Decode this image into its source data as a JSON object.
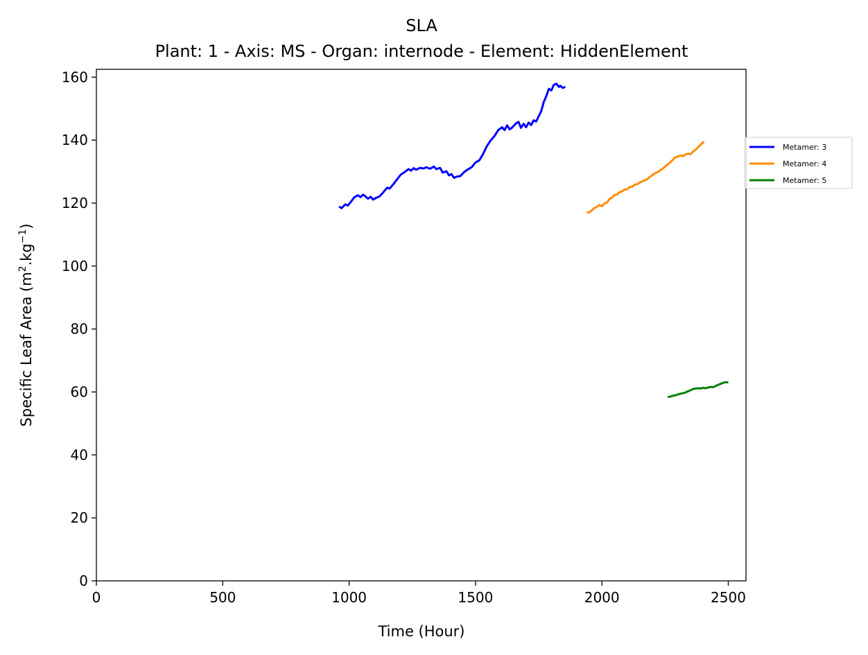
{
  "chart_data": {
    "type": "line",
    "title": "SLA",
    "subtitle": "Plant: 1 - Axis: MS - Organ: internode - Element: HiddenElement",
    "xlabel": "Time (Hour)",
    "ylabel_text": "Specific Leaf Area (m",
    "ylabel_sup1": "2",
    "ylabel_mid": ".kg",
    "ylabel_sup2": "−1",
    "ylabel_end": ")",
    "xlim": [
      0,
      2570
    ],
    "ylim": [
      0,
      162.5
    ],
    "xticks": [
      0,
      500,
      1000,
      1500,
      2000,
      2500
    ],
    "yticks": [
      0,
      20,
      40,
      60,
      80,
      100,
      120,
      140,
      160
    ],
    "grid": false,
    "legend_position": "right",
    "series": [
      {
        "name": "Metamer: 3",
        "color": "#0000ff",
        "points": [
          [
            960,
            118.9
          ],
          [
            970,
            118.4
          ],
          [
            985,
            119.6
          ],
          [
            995,
            119.2
          ],
          [
            1005,
            120.2
          ],
          [
            1020,
            121.8
          ],
          [
            1035,
            122.5
          ],
          [
            1045,
            121.9
          ],
          [
            1055,
            122.7
          ],
          [
            1065,
            122.1
          ],
          [
            1075,
            121.4
          ],
          [
            1085,
            122.0
          ],
          [
            1095,
            121.1
          ],
          [
            1105,
            121.6
          ],
          [
            1120,
            122.1
          ],
          [
            1135,
            123.4
          ],
          [
            1150,
            124.9
          ],
          [
            1160,
            124.6
          ],
          [
            1175,
            126.0
          ],
          [
            1190,
            127.6
          ],
          [
            1205,
            129.1
          ],
          [
            1220,
            129.9
          ],
          [
            1235,
            130.8
          ],
          [
            1245,
            130.3
          ],
          [
            1255,
            131.1
          ],
          [
            1265,
            130.6
          ],
          [
            1280,
            131.2
          ],
          [
            1295,
            131.0
          ],
          [
            1305,
            131.4
          ],
          [
            1320,
            130.9
          ],
          [
            1335,
            131.6
          ],
          [
            1345,
            130.8
          ],
          [
            1360,
            131.2
          ],
          [
            1370,
            129.7
          ],
          [
            1385,
            130.1
          ],
          [
            1395,
            128.8
          ],
          [
            1405,
            129.2
          ],
          [
            1415,
            128.0
          ],
          [
            1425,
            128.4
          ],
          [
            1440,
            128.6
          ],
          [
            1455,
            129.9
          ],
          [
            1470,
            130.7
          ],
          [
            1485,
            131.4
          ],
          [
            1500,
            132.9
          ],
          [
            1515,
            133.6
          ],
          [
            1530,
            135.6
          ],
          [
            1545,
            138.1
          ],
          [
            1560,
            139.9
          ],
          [
            1575,
            141.3
          ],
          [
            1590,
            143.2
          ],
          [
            1605,
            144.1
          ],
          [
            1615,
            143.2
          ],
          [
            1625,
            144.7
          ],
          [
            1635,
            143.4
          ],
          [
            1645,
            144.0
          ],
          [
            1660,
            145.3
          ],
          [
            1670,
            145.8
          ],
          [
            1680,
            143.9
          ],
          [
            1690,
            145.2
          ],
          [
            1700,
            144.1
          ],
          [
            1710,
            145.6
          ],
          [
            1720,
            144.8
          ],
          [
            1730,
            146.3
          ],
          [
            1740,
            145.9
          ],
          [
            1750,
            147.6
          ],
          [
            1760,
            149.2
          ],
          [
            1770,
            152.1
          ],
          [
            1780,
            154.0
          ],
          [
            1790,
            156.3
          ],
          [
            1800,
            155.8
          ],
          [
            1810,
            157.6
          ],
          [
            1820,
            157.9
          ],
          [
            1830,
            156.9
          ],
          [
            1835,
            157.3
          ],
          [
            1845,
            156.6
          ],
          [
            1855,
            156.9
          ]
        ]
      },
      {
        "name": "Metamer: 4",
        "color": "#ff8c00",
        "points": [
          [
            1940,
            117.0
          ],
          [
            1950,
            117.1
          ],
          [
            1960,
            117.7
          ],
          [
            1970,
            118.4
          ],
          [
            1980,
            118.8
          ],
          [
            1990,
            119.4
          ],
          [
            2000,
            119.0
          ],
          [
            2010,
            119.9
          ],
          [
            2020,
            120.2
          ],
          [
            2030,
            121.3
          ],
          [
            2040,
            121.7
          ],
          [
            2050,
            122.6
          ],
          [
            2060,
            122.7
          ],
          [
            2070,
            123.5
          ],
          [
            2080,
            123.7
          ],
          [
            2090,
            124.3
          ],
          [
            2100,
            124.4
          ],
          [
            2110,
            125.1
          ],
          [
            2120,
            125.2
          ],
          [
            2130,
            125.9
          ],
          [
            2140,
            126.0
          ],
          [
            2150,
            126.6
          ],
          [
            2160,
            126.9
          ],
          [
            2170,
            127.3
          ],
          [
            2180,
            127.6
          ],
          [
            2190,
            128.4
          ],
          [
            2200,
            128.9
          ],
          [
            2210,
            129.5
          ],
          [
            2220,
            129.8
          ],
          [
            2230,
            130.4
          ],
          [
            2240,
            130.9
          ],
          [
            2250,
            131.6
          ],
          [
            2260,
            132.3
          ],
          [
            2270,
            132.9
          ],
          [
            2280,
            133.7
          ],
          [
            2290,
            134.5
          ],
          [
            2300,
            134.8
          ],
          [
            2310,
            135.1
          ],
          [
            2320,
            134.9
          ],
          [
            2330,
            135.4
          ],
          [
            2340,
            135.7
          ],
          [
            2350,
            135.5
          ],
          [
            2360,
            136.3
          ],
          [
            2370,
            136.9
          ],
          [
            2380,
            137.7
          ],
          [
            2390,
            138.5
          ],
          [
            2400,
            139.3
          ],
          [
            2405,
            139.1
          ]
        ]
      },
      {
        "name": "Metamer: 5",
        "color": "#008000",
        "points": [
          [
            2260,
            58.4
          ],
          [
            2270,
            58.5
          ],
          [
            2280,
            58.8
          ],
          [
            2290,
            58.9
          ],
          [
            2300,
            59.2
          ],
          [
            2310,
            59.4
          ],
          [
            2320,
            59.6
          ],
          [
            2330,
            59.8
          ],
          [
            2340,
            60.2
          ],
          [
            2350,
            60.5
          ],
          [
            2360,
            60.9
          ],
          [
            2370,
            61.1
          ],
          [
            2380,
            61.2
          ],
          [
            2390,
            61.1
          ],
          [
            2400,
            61.3
          ],
          [
            2410,
            61.2
          ],
          [
            2420,
            61.4
          ],
          [
            2430,
            61.6
          ],
          [
            2440,
            61.5
          ],
          [
            2450,
            61.9
          ],
          [
            2460,
            62.3
          ],
          [
            2470,
            62.6
          ],
          [
            2480,
            62.9
          ],
          [
            2490,
            63.1
          ],
          [
            2500,
            63.0
          ]
        ]
      }
    ]
  }
}
